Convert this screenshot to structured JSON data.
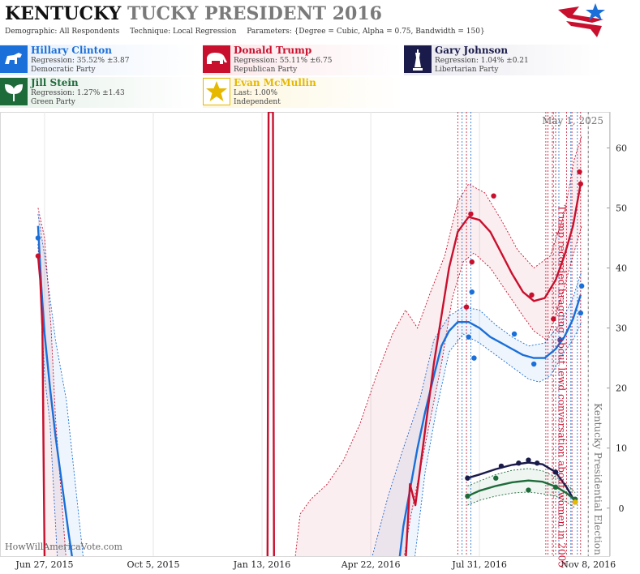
{
  "header": {
    "title_state": "KENTUCKY",
    "title_rest": "TUCKY PRESIDENT 2016",
    "demographic": "Demographic: All Respondents",
    "technique": "Technique: Local Regression",
    "parameters": "Parameters: {Degree = Cubic, Alpha = 0.75, Bandwidth = 150}"
  },
  "colors": {
    "clinton": "#1a6fd8",
    "trump": "#c8102e",
    "johnson": "#1b1b4b",
    "stein": "#1e6b3a",
    "mcmullin": "#e6b800"
  },
  "candidates": [
    {
      "key": "clinton",
      "name": "Hillary Clinton",
      "line2": "Regression: 35.52% ±3.87",
      "line3": "Democratic Party",
      "icon": "donkey-icon"
    },
    {
      "key": "trump",
      "name": "Donald Trump",
      "line2": "Regression: 55.11% ±6.75",
      "line3": "Republican Party",
      "icon": "elephant-icon"
    },
    {
      "key": "johnson",
      "name": "Gary Johnson",
      "line2": "Regression: 1.04% ±0.21",
      "line3": "Libertarian Party",
      "icon": "liberty-icon"
    },
    {
      "key": "stein",
      "name": "Jill Stein",
      "line2": "Regression: 1.27% ±1.43",
      "line3": "Green Party",
      "icon": "leaf-icon"
    },
    {
      "key": "mcmullin",
      "name": "Evan McMullin",
      "line2": "Last: 1.00%",
      "line3": "Independent",
      "icon": "star-icon"
    }
  ],
  "chart_data": {
    "type": "line",
    "x_start": "2015-06-27",
    "x_ticks": [
      "Jun 27, 2015",
      "Oct 5, 2015",
      "Jan 13, 2016",
      "Apr 22, 2016",
      "Jul 31, 2016",
      "Nov 8, 2016"
    ],
    "x_tick_days": [
      0,
      100,
      200,
      300,
      400,
      500
    ],
    "x_range_days": [
      -41,
      520
    ],
    "y_ticks": [
      "0",
      "10",
      "20",
      "30",
      "40",
      "50",
      "60"
    ],
    "ylim": [
      -8,
      66
    ],
    "date_label": "May 1, 2025",
    "watermark": "HowWillAmericaVote.com",
    "annotations": [
      {
        "text": "Trump recorded bragging about lewd conversation about women in 2005",
        "day": 468,
        "color": "#c8102e"
      },
      {
        "text": "Kentucky Presidential Election",
        "day": 500,
        "color": "#777"
      }
    ],
    "poll_lines_red": [
      380,
      388,
      461,
      463,
      467,
      470,
      480,
      485,
      493
    ],
    "poll_lines_blue": [
      384,
      392,
      473,
      484,
      490
    ],
    "series": [
      {
        "name": "Hillary Clinton",
        "color": "#1a6fd8",
        "points": [
          [
            -6,
            45
          ],
          [
            390,
            28.5
          ],
          [
            393,
            36
          ],
          [
            395,
            25
          ],
          [
            432,
            29
          ],
          [
            450,
            24
          ],
          [
            474,
            28
          ],
          [
            494,
            37
          ],
          [
            493,
            32.5
          ]
        ],
        "fit": [
          [
            -6,
            47
          ],
          [
            -3,
            37
          ],
          [
            0,
            29
          ],
          [
            5,
            20
          ],
          [
            10,
            12
          ],
          [
            16,
            4
          ],
          [
            22,
            -4
          ],
          [
            26,
            -9
          ],
          [
            326,
            -9
          ],
          [
            330,
            -3
          ],
          [
            336,
            3
          ],
          [
            343,
            10
          ],
          [
            350,
            16
          ],
          [
            358,
            22
          ],
          [
            365,
            27
          ],
          [
            372,
            29.5
          ],
          [
            380,
            31
          ],
          [
            390,
            31
          ],
          [
            400,
            30
          ],
          [
            410,
            28.5
          ],
          [
            420,
            27.5
          ],
          [
            430,
            26.5
          ],
          [
            440,
            25.5
          ],
          [
            450,
            25
          ],
          [
            460,
            25
          ],
          [
            470,
            26.5
          ],
          [
            478,
            28.5
          ],
          [
            486,
            31.5
          ],
          [
            493,
            35.5
          ]
        ],
        "band_hi": [
          [
            -6,
            49
          ],
          [
            0,
            42
          ],
          [
            10,
            28
          ],
          [
            20,
            18
          ],
          [
            36,
            -9
          ],
          [
            300,
            -9
          ],
          [
            316,
            2
          ],
          [
            330,
            10
          ],
          [
            345,
            18
          ],
          [
            358,
            28
          ],
          [
            372,
            32
          ],
          [
            385,
            33.5
          ],
          [
            400,
            33
          ],
          [
            415,
            30.5
          ],
          [
            430,
            28.5
          ],
          [
            445,
            27
          ],
          [
            460,
            27.5
          ],
          [
            475,
            31
          ],
          [
            486,
            35
          ],
          [
            494,
            39.5
          ]
        ],
        "band_lo": [
          [
            -6,
            44
          ],
          [
            0,
            22
          ],
          [
            5,
            14
          ],
          [
            12,
            -9
          ],
          [
            340,
            -9
          ],
          [
            350,
            6
          ],
          [
            360,
            16
          ],
          [
            372,
            26
          ],
          [
            385,
            29
          ],
          [
            400,
            27.5
          ],
          [
            415,
            25.5
          ],
          [
            430,
            23.5
          ],
          [
            445,
            21.5
          ],
          [
            455,
            21
          ],
          [
            465,
            22
          ],
          [
            478,
            26
          ],
          [
            486,
            28
          ],
          [
            494,
            31
          ]
        ]
      },
      {
        "name": "Donald Trump",
        "color": "#c8102e",
        "points": [
          [
            -6,
            42
          ],
          [
            388,
            33.5
          ],
          [
            392,
            49
          ],
          [
            393,
            41
          ],
          [
            413,
            52
          ],
          [
            448,
            35.5
          ],
          [
            468,
            31.5
          ],
          [
            492,
            56
          ],
          [
            493,
            54
          ]
        ],
        "fit": [
          [
            -6,
            42
          ],
          [
            -4,
            38
          ],
          [
            -2,
            30
          ],
          [
            -1,
            10
          ],
          [
            0,
            -9
          ],
          [
            205,
            -9
          ],
          [
            206,
            66
          ],
          [
            210,
            66
          ],
          [
            211,
            -9
          ],
          [
            332,
            -9
          ],
          [
            336,
            4
          ],
          [
            341,
            0.5
          ],
          [
            350,
            13
          ],
          [
            358,
            24
          ],
          [
            365,
            32
          ],
          [
            372,
            40
          ],
          [
            380,
            46
          ],
          [
            390,
            48.5
          ],
          [
            400,
            48
          ],
          [
            410,
            46
          ],
          [
            420,
            42.5
          ],
          [
            430,
            39
          ],
          [
            440,
            36
          ],
          [
            450,
            34.5
          ],
          [
            460,
            35
          ],
          [
            470,
            38
          ],
          [
            478,
            42
          ],
          [
            486,
            47
          ],
          [
            493,
            54
          ]
        ],
        "band_hi": [
          [
            -6,
            50
          ],
          [
            0,
            45
          ],
          [
            6,
            30
          ],
          [
            10,
            15
          ],
          [
            20,
            -9
          ],
          [
            230,
            -9
          ],
          [
            235,
            -1
          ],
          [
            245,
            1.5
          ],
          [
            260,
            4
          ],
          [
            275,
            8
          ],
          [
            290,
            14
          ],
          [
            305,
            22
          ],
          [
            320,
            29
          ],
          [
            332,
            33
          ],
          [
            343,
            30
          ],
          [
            355,
            36
          ],
          [
            368,
            42
          ],
          [
            380,
            51
          ],
          [
            390,
            54
          ],
          [
            405,
            52.5
          ],
          [
            420,
            48
          ],
          [
            435,
            43
          ],
          [
            450,
            40
          ],
          [
            465,
            42
          ],
          [
            478,
            49
          ],
          [
            487,
            58
          ],
          [
            494,
            62
          ]
        ],
        "band_lo": [
          [
            -6,
            44
          ],
          [
            -3,
            33
          ],
          [
            -1,
            20
          ],
          [
            0,
            -9
          ],
          [
            330,
            -9
          ],
          [
            336,
            -2
          ],
          [
            345,
            6
          ],
          [
            355,
            15
          ],
          [
            365,
            24
          ],
          [
            375,
            35
          ],
          [
            385,
            41
          ],
          [
            395,
            42.5
          ],
          [
            410,
            40
          ],
          [
            425,
            36
          ],
          [
            440,
            32
          ],
          [
            450,
            29.5
          ],
          [
            462,
            28
          ],
          [
            475,
            35
          ],
          [
            486,
            42
          ],
          [
            494,
            47
          ]
        ]
      },
      {
        "name": "Gary Johnson",
        "color": "#1b1b4b",
        "points": [
          [
            389,
            5
          ],
          [
            420,
            7
          ],
          [
            436,
            7.5
          ],
          [
            445,
            8
          ],
          [
            453,
            7.5
          ],
          [
            470,
            6
          ],
          [
            488,
            1
          ]
        ],
        "fit": [
          [
            389,
            5
          ],
          [
            400,
            5.6
          ],
          [
            415,
            6.5
          ],
          [
            430,
            7.2
          ],
          [
            445,
            7.6
          ],
          [
            458,
            7.3
          ],
          [
            470,
            6
          ],
          [
            480,
            3.5
          ],
          [
            488,
            1
          ]
        ],
        "band_hi": [],
        "band_lo": []
      },
      {
        "name": "Jill Stein",
        "color": "#1e6b3a",
        "points": [
          [
            389,
            2
          ],
          [
            415,
            5
          ],
          [
            445,
            3
          ],
          [
            470,
            3.5
          ],
          [
            488,
            1.5
          ]
        ],
        "fit": [
          [
            389,
            2
          ],
          [
            400,
            2.9
          ],
          [
            415,
            3.7
          ],
          [
            430,
            4.3
          ],
          [
            445,
            4.6
          ],
          [
            458,
            4.4
          ],
          [
            470,
            3.6
          ],
          [
            480,
            2.5
          ],
          [
            488,
            1.3
          ]
        ],
        "band_hi": [
          [
            389,
            3.7
          ],
          [
            400,
            4.5
          ],
          [
            415,
            5.6
          ],
          [
            430,
            6.3
          ],
          [
            445,
            6.6
          ],
          [
            458,
            6.2
          ],
          [
            470,
            5.2
          ],
          [
            480,
            4
          ],
          [
            488,
            2.6
          ]
        ],
        "band_lo": [
          [
            389,
            0.5
          ],
          [
            400,
            1.3
          ],
          [
            415,
            2
          ],
          [
            430,
            2.5
          ],
          [
            445,
            2.7
          ],
          [
            458,
            2.4
          ],
          [
            470,
            2
          ],
          [
            480,
            1
          ],
          [
            488,
            0
          ]
        ]
      },
      {
        "name": "Evan McMullin",
        "color": "#e6b800",
        "points": [
          [
            488,
            1
          ]
        ],
        "fit": [],
        "band_hi": [],
        "band_lo": []
      }
    ]
  }
}
